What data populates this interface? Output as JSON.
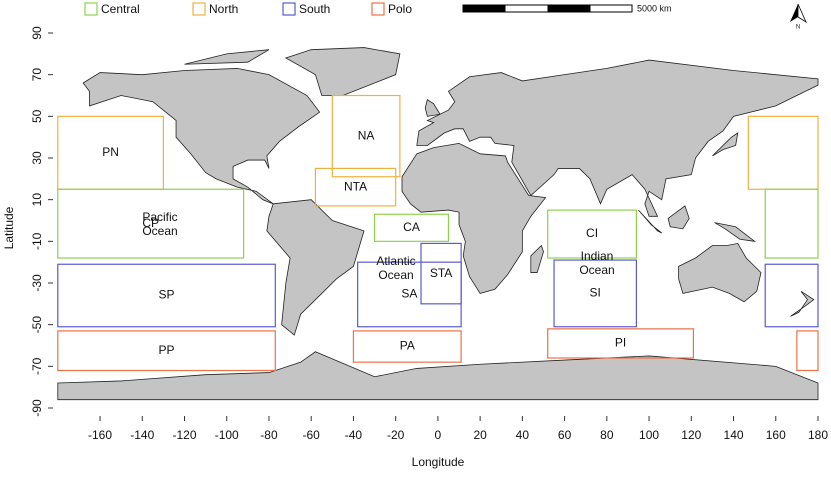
{
  "map": {
    "x_axis_label": "Longitude",
    "y_axis_label": "Latitude",
    "xlim": [
      -180,
      180
    ],
    "ylim": [
      -90,
      90
    ],
    "xticks": [
      -160,
      -140,
      -120,
      -100,
      -80,
      -60,
      -40,
      -20,
      0,
      20,
      40,
      60,
      80,
      100,
      120,
      140,
      160,
      180
    ],
    "yticks": [
      90,
      70,
      50,
      30,
      10,
      -10,
      -30,
      -50,
      -70,
      -90
    ],
    "scale_bar_label": "5000 km",
    "north_label": "N",
    "legend": [
      {
        "name": "Central",
        "color": "#8fd14f"
      },
      {
        "name": "North",
        "color": "#f0b040"
      },
      {
        "name": "South",
        "color": "#5a5ad0"
      },
      {
        "name": "Polo",
        "color": "#f07048"
      }
    ],
    "annotations": [
      [
        "Pacific",
        "Ocean"
      ],
      [
        "Atlantic",
        "Ocean"
      ],
      [
        "Indian",
        "Ocean"
      ]
    ],
    "regions": [
      {
        "label": "PN",
        "group": 1,
        "lon_min": -180,
        "lon_max": -130,
        "lat_min": 15,
        "lat_max": 50
      },
      {
        "label": null,
        "group": 1,
        "lon_min": 147,
        "lon_max": 180,
        "lat_min": 15,
        "lat_max": 50
      },
      {
        "label": "CP",
        "group": 0,
        "lon_min": -180,
        "lon_max": -92,
        "lat_min": -18,
        "lat_max": 15
      },
      {
        "label": null,
        "group": 0,
        "lon_min": 155,
        "lon_max": 180,
        "lat_min": -18,
        "lat_max": 15
      },
      {
        "label": "SP",
        "group": 2,
        "lon_min": -180,
        "lon_max": -77,
        "lat_min": -51,
        "lat_max": -21
      },
      {
        "label": null,
        "group": 2,
        "lon_min": 155,
        "lon_max": 180,
        "lat_min": -51,
        "lat_max": -21
      },
      {
        "label": "PP",
        "group": 3,
        "lon_min": -180,
        "lon_max": -77,
        "lat_min": -72,
        "lat_max": -53
      },
      {
        "label": null,
        "group": 3,
        "lon_min": 170,
        "lon_max": 180,
        "lat_min": -72,
        "lat_max": -53
      },
      {
        "label": "NA",
        "group": 1,
        "lon_min": -50,
        "lon_max": -18,
        "lat_min": 21,
        "lat_max": 60
      },
      {
        "label": "NTA",
        "group": 1,
        "lon_min": -58,
        "lon_max": -20,
        "lat_min": 7,
        "lat_max": 25
      },
      {
        "label": "CA",
        "group": 0,
        "lon_min": -30,
        "lon_max": 5,
        "lat_min": -10,
        "lat_max": 3
      },
      {
        "label": "STA",
        "group": 2,
        "lon_min": -8,
        "lon_max": 11,
        "lat_min": -40,
        "lat_max": -11
      },
      {
        "label": "SA",
        "group": 2,
        "lon_min": -38,
        "lon_max": 11,
        "lat_min": -51,
        "lat_max": -20
      },
      {
        "label": "PA",
        "group": 3,
        "lon_min": -40,
        "lon_max": 11,
        "lat_min": -68,
        "lat_max": -53
      },
      {
        "label": "CI",
        "group": 0,
        "lon_min": 52,
        "lon_max": 94,
        "lat_min": -18,
        "lat_max": 5
      },
      {
        "label": "SI",
        "group": 2,
        "lon_min": 55,
        "lon_max": 94,
        "lat_min": -51,
        "lat_max": -19
      },
      {
        "label": "PI",
        "group": 3,
        "lon_min": 52,
        "lon_max": 121,
        "lat_min": -66,
        "lat_max": -52
      }
    ]
  }
}
